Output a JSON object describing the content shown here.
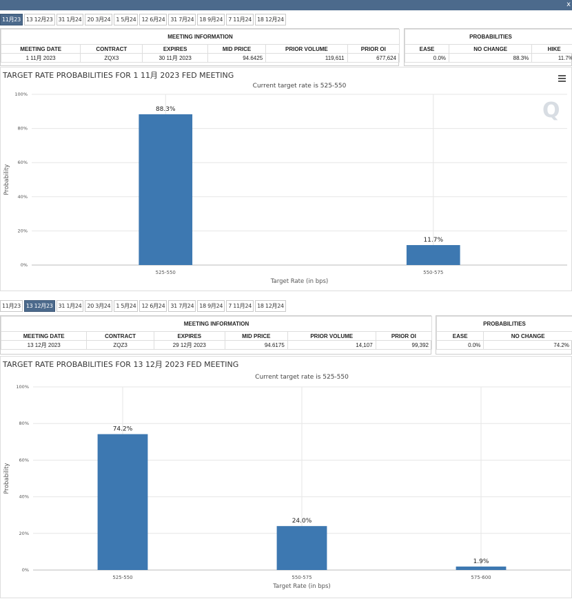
{
  "colors": {
    "header": "#4c6a8c",
    "bar": "#3d78b1",
    "grid": "#e6e6e6"
  },
  "window": {
    "corner_icon": "x-icon",
    "corner_glyph": "x"
  },
  "panel1": {
    "tabs": [
      "11月23",
      "13 12月23",
      "31 1月24",
      "20 3月24",
      "1 5月24",
      "12 6月24",
      "31 7月24",
      "18 9月24",
      "7 11月24",
      "18 12月24"
    ],
    "active_tab": 0,
    "meeting_info_header": "MEETING INFORMATION",
    "probabilities_header": "PROBABILITIES",
    "columns": [
      "MEETING DATE",
      "CONTRACT",
      "EXPIRES",
      "MID PRICE",
      "PRIOR VOLUME",
      "PRIOR OI"
    ],
    "row": [
      "1 11月 2023",
      "ZQX3",
      "30 11月 2023",
      "94.6425",
      "119,611",
      "677,624"
    ],
    "prob_columns": [
      "EASE",
      "NO CHANGE",
      "HIKE"
    ],
    "prob_row": [
      "0.0%",
      "88.3%",
      "11.7%"
    ],
    "chart_title": "TARGET RATE PROBABILITIES FOR 1 11月 2023 FED MEETING",
    "watermark": "Q"
  },
  "panel2": {
    "tabs": [
      "11月23",
      "13 12月23",
      "31 1月24",
      "20 3月24",
      "1 5月24",
      "12 6月24",
      "31 7月24",
      "18 9月24",
      "7 11月24",
      "18 12月24"
    ],
    "active_tab": 1,
    "meeting_info_header": "MEETING INFORMATION",
    "probabilities_header": "PROBABILITIES",
    "columns": [
      "MEETING DATE",
      "CONTRACT",
      "EXPIRES",
      "MID PRICE",
      "PRIOR VOLUME",
      "PRIOR OI"
    ],
    "row": [
      "13 12月 2023",
      "ZQZ3",
      "29 12月 2023",
      "94.6175",
      "14,107",
      "99,392"
    ],
    "prob_columns": [
      "EASE",
      "NO CHANGE"
    ],
    "prob_row": [
      "0.0%",
      "74.2%"
    ],
    "chart_title": "TARGET RATE PROBABILITIES FOR 13 12月 2023 FED MEETING"
  },
  "chart_data": [
    {
      "type": "bar",
      "subtitle": "Current target rate is 525-550",
      "categories": [
        "525-550",
        "550-575"
      ],
      "values": [
        88.3,
        11.7
      ],
      "value_labels": [
        "88.3%",
        "11.7%"
      ],
      "xlabel": "Target Rate (in bps)",
      "ylabel": "Probability",
      "ylim": [
        0,
        100
      ],
      "yticks": [
        0,
        20,
        40,
        60,
        80,
        100
      ],
      "ytick_labels": [
        "0%",
        "20%",
        "40%",
        "60%",
        "80%",
        "100%"
      ],
      "grid": true
    },
    {
      "type": "bar",
      "subtitle": "Current target rate is 525-550",
      "categories": [
        "525-550",
        "550-575",
        "575-600"
      ],
      "values": [
        74.2,
        24.0,
        1.9
      ],
      "value_labels": [
        "74.2%",
        "24.0%",
        "1.9%"
      ],
      "xlabel": "Target Rate (in bps)",
      "ylabel": "Probability",
      "ylim": [
        0,
        100
      ],
      "yticks": [
        0,
        20,
        40,
        60,
        80,
        100
      ],
      "ytick_labels": [
        "0%",
        "20%",
        "40%",
        "60%",
        "80%",
        "100%"
      ],
      "grid": true
    }
  ]
}
